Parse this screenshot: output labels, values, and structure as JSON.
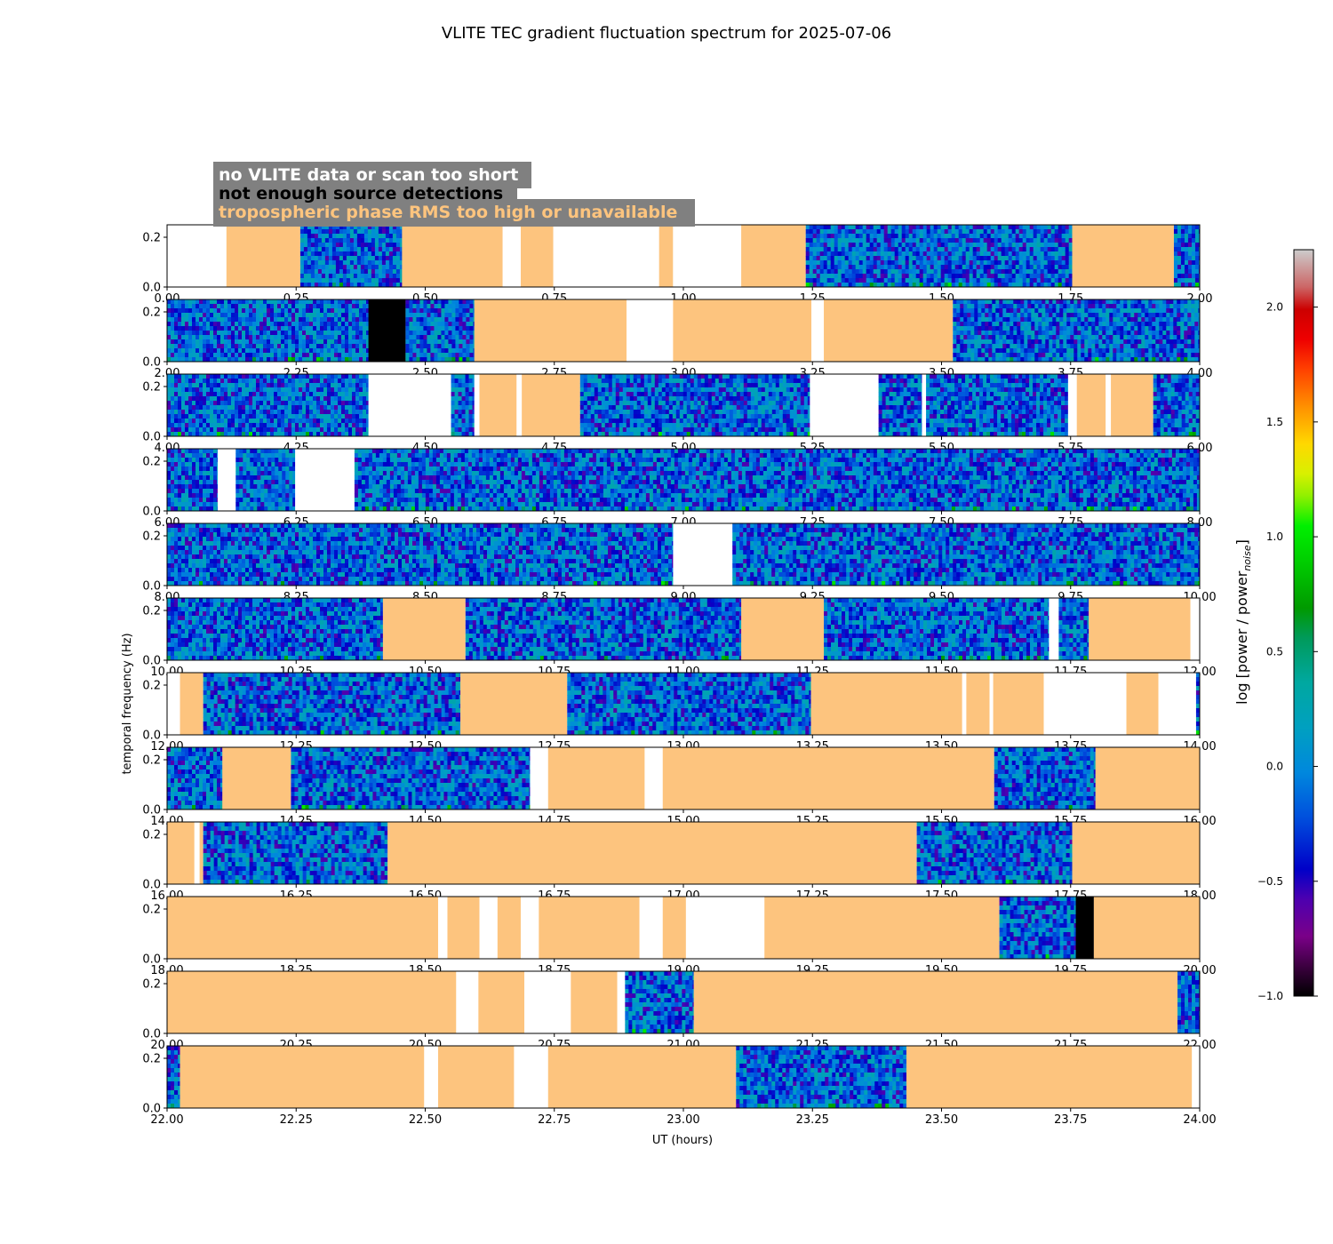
{
  "chart_data": {
    "type": "heatmap",
    "title": "VLITE TEC gradient fluctuation spectrum for 2025-07-06",
    "xlabel": "UT (hours)",
    "ylabel": "temporal frequency (Hz)",
    "colorbar": {
      "label": "log [power / power",
      "label_sub": "noise",
      "label_close": "]",
      "range": [
        -1.0,
        2.25
      ],
      "ticks": [
        -1.0,
        -0.5,
        0.0,
        0.5,
        1.0,
        1.5,
        2.0
      ],
      "tick_labels": [
        "−1.0",
        "−0.5",
        "0.0",
        "0.5",
        "1.0",
        "1.5",
        "2.0"
      ]
    },
    "legend": {
      "placement": "top-left",
      "background": "#808080",
      "entries": [
        {
          "label": "no VLITE data or scan too short",
          "color": "#ffffff"
        },
        {
          "label": "not enough source detections",
          "color": "#000000"
        },
        {
          "label": "tropospheric phase RMS too high or unavailable",
          "color": "#fdc47e"
        }
      ]
    },
    "status_colors": {
      "nodata": "#ffffff",
      "nodet": "#000000",
      "trop": "#fdc47e"
    },
    "y_range": [
      0.0,
      0.25
    ],
    "y_ticks": [
      0.0,
      0.2
    ],
    "y_tick_labels": [
      "0.0",
      "0.2"
    ],
    "panels": [
      {
        "xlim": [
          0,
          2
        ],
        "x_tick_labels": [
          "0.00",
          "0.25",
          "0.50",
          "0.75",
          "1.00",
          "1.25",
          "1.50",
          "1.75",
          "2.00"
        ],
        "segments": [
          {
            "start": 0.0,
            "end": 0.115,
            "status": "nodata"
          },
          {
            "start": 0.115,
            "end": 0.258,
            "status": "trop"
          },
          {
            "start": 0.258,
            "end": 0.455,
            "status": "data"
          },
          {
            "start": 0.455,
            "end": 0.65,
            "status": "trop"
          },
          {
            "start": 0.65,
            "end": 0.685,
            "status": "nodata"
          },
          {
            "start": 0.685,
            "end": 0.748,
            "status": "trop"
          },
          {
            "start": 0.748,
            "end": 0.953,
            "status": "nodata"
          },
          {
            "start": 0.953,
            "end": 0.98,
            "status": "trop"
          },
          {
            "start": 0.98,
            "end": 1.112,
            "status": "nodata"
          },
          {
            "start": 1.112,
            "end": 1.237,
            "status": "trop"
          },
          {
            "start": 1.237,
            "end": 1.753,
            "status": "data"
          },
          {
            "start": 1.753,
            "end": 1.95,
            "status": "trop"
          },
          {
            "start": 1.95,
            "end": 2.0,
            "status": "data"
          }
        ]
      },
      {
        "xlim": [
          2,
          4
        ],
        "x_tick_labels": [
          "2.00",
          "2.25",
          "2.50",
          "2.75",
          "3.00",
          "3.25",
          "3.50",
          "3.75",
          "4.00"
        ],
        "segments": [
          {
            "start": 2.0,
            "end": 2.39,
            "status": "data"
          },
          {
            "start": 2.39,
            "end": 2.462,
            "status": "nodet"
          },
          {
            "start": 2.462,
            "end": 2.595,
            "status": "data"
          },
          {
            "start": 2.595,
            "end": 2.89,
            "status": "trop"
          },
          {
            "start": 2.89,
            "end": 2.98,
            "status": "nodata"
          },
          {
            "start": 2.98,
            "end": 3.248,
            "status": "trop"
          },
          {
            "start": 3.248,
            "end": 3.272,
            "status": "nodata"
          },
          {
            "start": 3.272,
            "end": 3.522,
            "status": "trop"
          },
          {
            "start": 3.522,
            "end": 4.0,
            "status": "data"
          }
        ]
      },
      {
        "xlim": [
          4,
          6
        ],
        "x_tick_labels": [
          "4.00",
          "4.25",
          "4.50",
          "4.75",
          "5.00",
          "5.25",
          "5.50",
          "5.75",
          "6.00"
        ],
        "segments": [
          {
            "start": 4.0,
            "end": 4.39,
            "status": "data"
          },
          {
            "start": 4.39,
            "end": 4.55,
            "status": "nodata"
          },
          {
            "start": 4.55,
            "end": 4.595,
            "status": "data"
          },
          {
            "start": 4.595,
            "end": 4.605,
            "status": "nodata"
          },
          {
            "start": 4.605,
            "end": 4.677,
            "status": "trop"
          },
          {
            "start": 4.677,
            "end": 4.687,
            "status": "nodata"
          },
          {
            "start": 4.687,
            "end": 4.8,
            "status": "trop"
          },
          {
            "start": 4.8,
            "end": 5.245,
            "status": "data"
          },
          {
            "start": 5.245,
            "end": 5.378,
            "status": "nodata"
          },
          {
            "start": 5.378,
            "end": 5.462,
            "status": "data"
          },
          {
            "start": 5.462,
            "end": 5.47,
            "status": "nodata"
          },
          {
            "start": 5.47,
            "end": 5.745,
            "status": "data"
          },
          {
            "start": 5.745,
            "end": 5.762,
            "status": "nodata"
          },
          {
            "start": 5.762,
            "end": 5.818,
            "status": "trop"
          },
          {
            "start": 5.818,
            "end": 5.828,
            "status": "nodata"
          },
          {
            "start": 5.828,
            "end": 5.91,
            "status": "trop"
          },
          {
            "start": 5.91,
            "end": 6.0,
            "status": "data"
          }
        ]
      },
      {
        "xlim": [
          6,
          8
        ],
        "x_tick_labels": [
          "6.00",
          "6.25",
          "6.50",
          "6.75",
          "7.00",
          "7.25",
          "7.50",
          "7.75",
          "8.00"
        ],
        "segments": [
          {
            "start": 6.0,
            "end": 6.098,
            "status": "data"
          },
          {
            "start": 6.098,
            "end": 6.133,
            "status": "nodata"
          },
          {
            "start": 6.133,
            "end": 6.248,
            "status": "data"
          },
          {
            "start": 6.248,
            "end": 6.363,
            "status": "nodata"
          },
          {
            "start": 6.363,
            "end": 8.0,
            "status": "data"
          }
        ]
      },
      {
        "xlim": [
          8,
          10
        ],
        "x_tick_labels": [
          "8.00",
          "8.25",
          "8.50",
          "8.75",
          "9.00",
          "9.25",
          "9.50",
          "9.75",
          "10.00"
        ],
        "segments": [
          {
            "start": 8.0,
            "end": 8.98,
            "status": "data"
          },
          {
            "start": 8.98,
            "end": 9.095,
            "status": "nodata"
          },
          {
            "start": 9.095,
            "end": 10.0,
            "status": "data"
          }
        ]
      },
      {
        "xlim": [
          10,
          12
        ],
        "x_tick_labels": [
          "10.00",
          "10.25",
          "10.50",
          "10.75",
          "11.00",
          "11.25",
          "11.50",
          "11.75",
          "12.00"
        ],
        "segments": [
          {
            "start": 10.0,
            "end": 10.418,
            "status": "data"
          },
          {
            "start": 10.418,
            "end": 10.578,
            "status": "trop"
          },
          {
            "start": 10.578,
            "end": 11.112,
            "status": "data"
          },
          {
            "start": 11.112,
            "end": 11.272,
            "status": "trop"
          },
          {
            "start": 11.272,
            "end": 11.708,
            "status": "data"
          },
          {
            "start": 11.708,
            "end": 11.727,
            "status": "nodata"
          },
          {
            "start": 11.727,
            "end": 11.785,
            "status": "data"
          },
          {
            "start": 11.785,
            "end": 11.982,
            "status": "trop"
          },
          {
            "start": 11.982,
            "end": 12.0,
            "status": "nodata"
          }
        ]
      },
      {
        "xlim": [
          12,
          14
        ],
        "x_tick_labels": [
          "12.00",
          "12.25",
          "12.50",
          "12.75",
          "13.00",
          "13.25",
          "13.50",
          "13.75",
          "14.00"
        ],
        "segments": [
          {
            "start": 12.0,
            "end": 12.025,
            "status": "nodata"
          },
          {
            "start": 12.025,
            "end": 12.07,
            "status": "trop"
          },
          {
            "start": 12.07,
            "end": 12.568,
            "status": "data"
          },
          {
            "start": 12.568,
            "end": 12.775,
            "status": "trop"
          },
          {
            "start": 12.775,
            "end": 13.247,
            "status": "data"
          },
          {
            "start": 13.247,
            "end": 13.54,
            "status": "trop"
          },
          {
            "start": 13.54,
            "end": 13.548,
            "status": "nodata"
          },
          {
            "start": 13.548,
            "end": 13.593,
            "status": "trop"
          },
          {
            "start": 13.593,
            "end": 13.6,
            "status": "nodata"
          },
          {
            "start": 13.6,
            "end": 13.698,
            "status": "trop"
          },
          {
            "start": 13.698,
            "end": 13.858,
            "status": "nodata"
          },
          {
            "start": 13.858,
            "end": 13.92,
            "status": "trop"
          },
          {
            "start": 13.92,
            "end": 13.993,
            "status": "nodata"
          },
          {
            "start": 13.993,
            "end": 14.0,
            "status": "data"
          }
        ]
      },
      {
        "xlim": [
          14,
          16
        ],
        "x_tick_labels": [
          "14.00",
          "14.25",
          "14.50",
          "14.75",
          "15.00",
          "15.25",
          "15.50",
          "15.75",
          "16.00"
        ],
        "segments": [
          {
            "start": 14.0,
            "end": 14.107,
            "status": "data"
          },
          {
            "start": 14.107,
            "end": 14.24,
            "status": "trop"
          },
          {
            "start": 14.24,
            "end": 14.703,
            "status": "data"
          },
          {
            "start": 14.703,
            "end": 14.738,
            "status": "nodata"
          },
          {
            "start": 14.738,
            "end": 14.925,
            "status": "trop"
          },
          {
            "start": 14.925,
            "end": 14.96,
            "status": "nodata"
          },
          {
            "start": 14.96,
            "end": 15.602,
            "status": "trop"
          },
          {
            "start": 15.602,
            "end": 15.798,
            "status": "data"
          },
          {
            "start": 15.798,
            "end": 16.0,
            "status": "trop"
          }
        ]
      },
      {
        "xlim": [
          16,
          18
        ],
        "x_tick_labels": [
          "16.00",
          "16.25",
          "16.50",
          "16.75",
          "17.00",
          "17.25",
          "17.50",
          "17.75",
          "18.00"
        ],
        "segments": [
          {
            "start": 16.0,
            "end": 16.053,
            "status": "trop"
          },
          {
            "start": 16.053,
            "end": 16.063,
            "status": "nodata"
          },
          {
            "start": 16.063,
            "end": 16.07,
            "status": "trop"
          },
          {
            "start": 16.07,
            "end": 16.427,
            "status": "data"
          },
          {
            "start": 16.427,
            "end": 17.452,
            "status": "trop"
          },
          {
            "start": 17.452,
            "end": 17.753,
            "status": "data"
          },
          {
            "start": 17.753,
            "end": 18.0,
            "status": "trop"
          }
        ]
      },
      {
        "xlim": [
          18,
          20
        ],
        "x_tick_labels": [
          "18.00",
          "18.25",
          "18.50",
          "18.75",
          "19.00",
          "19.25",
          "19.50",
          "19.75",
          "20.00"
        ],
        "segments": [
          {
            "start": 18.0,
            "end": 18.525,
            "status": "trop"
          },
          {
            "start": 18.525,
            "end": 18.543,
            "status": "nodata"
          },
          {
            "start": 18.543,
            "end": 18.605,
            "status": "trop"
          },
          {
            "start": 18.605,
            "end": 18.64,
            "status": "nodata"
          },
          {
            "start": 18.64,
            "end": 18.685,
            "status": "trop"
          },
          {
            "start": 18.685,
            "end": 18.72,
            "status": "nodata"
          },
          {
            "start": 18.72,
            "end": 18.915,
            "status": "trop"
          },
          {
            "start": 18.915,
            "end": 18.96,
            "status": "nodata"
          },
          {
            "start": 18.96,
            "end": 19.005,
            "status": "trop"
          },
          {
            "start": 19.005,
            "end": 19.157,
            "status": "nodata"
          },
          {
            "start": 19.157,
            "end": 19.612,
            "status": "trop"
          },
          {
            "start": 19.612,
            "end": 19.76,
            "status": "data"
          },
          {
            "start": 19.76,
            "end": 19.795,
            "status": "nodet"
          },
          {
            "start": 19.795,
            "end": 20.0,
            "status": "trop"
          }
        ]
      },
      {
        "xlim": [
          20,
          22
        ],
        "x_tick_labels": [
          "20.00",
          "20.25",
          "20.50",
          "20.75",
          "21.00",
          "21.25",
          "21.50",
          "21.75",
          "22.00"
        ],
        "segments": [
          {
            "start": 20.0,
            "end": 20.56,
            "status": "trop"
          },
          {
            "start": 20.56,
            "end": 20.603,
            "status": "nodata"
          },
          {
            "start": 20.603,
            "end": 20.692,
            "status": "trop"
          },
          {
            "start": 20.692,
            "end": 20.782,
            "status": "nodata"
          },
          {
            "start": 20.782,
            "end": 20.872,
            "status": "trop"
          },
          {
            "start": 20.872,
            "end": 20.887,
            "status": "nodata"
          },
          {
            "start": 20.887,
            "end": 21.02,
            "status": "data"
          },
          {
            "start": 21.02,
            "end": 21.957,
            "status": "trop"
          },
          {
            "start": 21.957,
            "end": 22.0,
            "status": "data"
          }
        ]
      },
      {
        "xlim": [
          22,
          24
        ],
        "x_tick_labels": [
          "22.00",
          "22.25",
          "22.50",
          "22.75",
          "23.00",
          "23.25",
          "23.50",
          "23.75",
          "24.00"
        ],
        "segments": [
          {
            "start": 22.0,
            "end": 22.025,
            "status": "data"
          },
          {
            "start": 22.025,
            "end": 22.498,
            "status": "trop"
          },
          {
            "start": 22.498,
            "end": 22.525,
            "status": "nodata"
          },
          {
            "start": 22.525,
            "end": 22.672,
            "status": "trop"
          },
          {
            "start": 22.672,
            "end": 22.738,
            "status": "nodata"
          },
          {
            "start": 22.738,
            "end": 23.102,
            "status": "trop"
          },
          {
            "start": 23.102,
            "end": 23.432,
            "status": "data"
          },
          {
            "start": 23.432,
            "end": 23.985,
            "status": "trop"
          },
          {
            "start": 23.985,
            "end": 24.0,
            "status": "nodata"
          }
        ]
      }
    ]
  }
}
